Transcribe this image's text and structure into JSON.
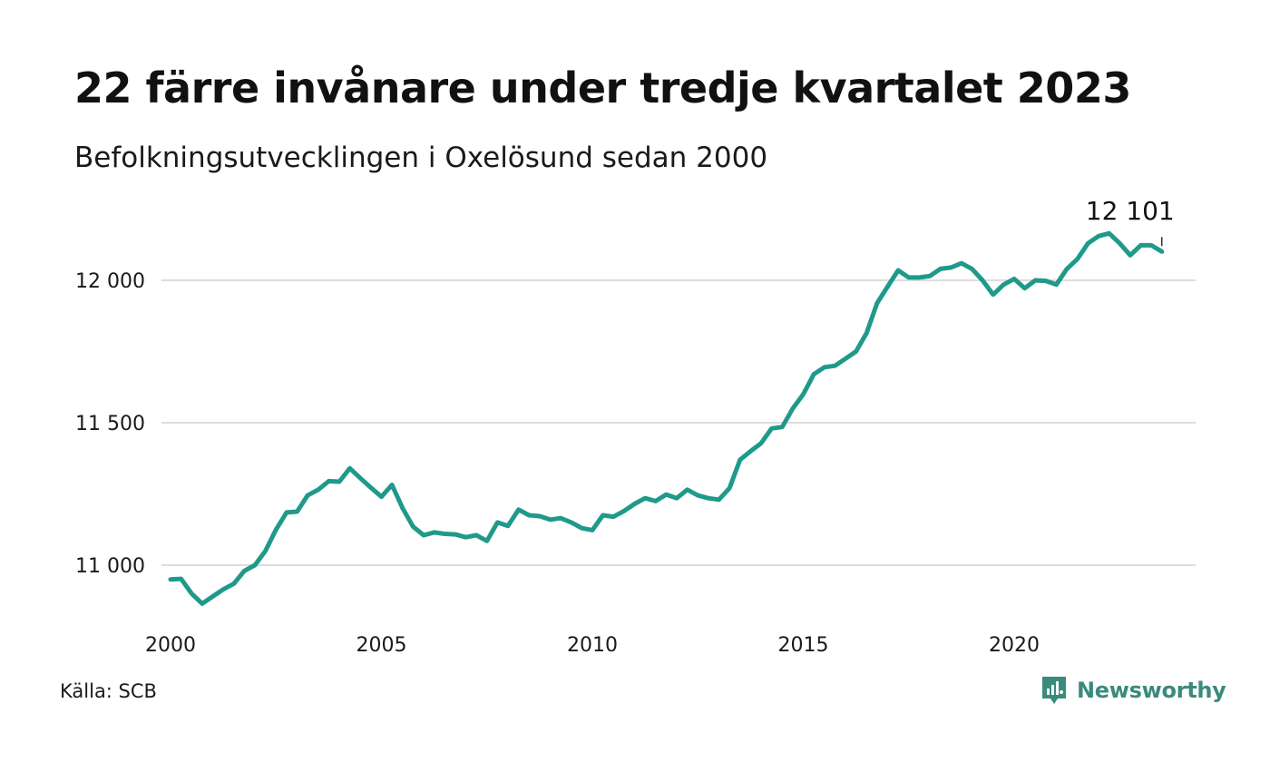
{
  "header": {
    "title": "22 färre invånare under tredje kvartalet 2023",
    "subtitle": "Befolkningsutvecklingen i Oxelösund sedan 2000"
  },
  "footer": {
    "source": "Källa: SCB",
    "brand": "Newsworthy",
    "brand_icon": "newsworthy-logo-icon"
  },
  "colors": {
    "line": "#1f9a8a",
    "grid": "#dddddd",
    "brand": "#3a8a7d"
  },
  "chart_data": {
    "type": "line",
    "title": "22 färre invånare under tredje kvartalet 2023",
    "subtitle": "Befolkningsutvecklingen i Oxelösund sedan 2000",
    "xlabel": "",
    "ylabel": "",
    "ylim": [
      10800,
      12200
    ],
    "y_ticks": [
      11000,
      11500,
      12000
    ],
    "y_tick_labels": [
      "11 000",
      "11 500",
      "12 000"
    ],
    "x_ticks": [
      2000,
      2005,
      2010,
      2015,
      2020
    ],
    "x_tick_labels": [
      "2000",
      "2005",
      "2010",
      "2015",
      "2020"
    ],
    "grid": true,
    "legend": "none",
    "annotation": {
      "label": "12 101",
      "value": 12101
    },
    "series": [
      {
        "x": [
          2000.0,
          2000.25,
          2000.5,
          2000.75,
          2001.0,
          2001.25,
          2001.5,
          2001.75,
          2002.0,
          2002.25,
          2002.5,
          2002.75,
          2003.0,
          2003.25,
          2003.5,
          2003.75,
          2004.0,
          2004.25,
          2004.5,
          2004.75,
          2005.0,
          2005.25,
          2005.5,
          2005.75,
          2006.0,
          2006.25,
          2006.5,
          2006.75,
          2007.0,
          2007.25,
          2007.5,
          2007.75,
          2008.0,
          2008.25,
          2008.5,
          2008.75,
          2009.0,
          2009.25,
          2009.5,
          2009.75,
          2010.0,
          2010.25,
          2010.5,
          2010.75,
          2011.0,
          2011.25,
          2011.5,
          2011.75,
          2012.0,
          2012.25,
          2012.5,
          2012.75,
          2013.0,
          2013.25,
          2013.5,
          2013.75,
          2014.0,
          2014.25,
          2014.5,
          2014.75,
          2015.0,
          2015.25,
          2015.5,
          2015.75,
          2016.0,
          2016.25,
          2016.5,
          2016.75,
          2017.0,
          2017.25,
          2017.5,
          2017.75,
          2018.0,
          2018.25,
          2018.5,
          2018.75,
          2019.0,
          2019.25,
          2019.5,
          2019.75,
          2020.0,
          2020.25,
          2020.5,
          2020.75,
          2021.0,
          2021.25,
          2021.5,
          2021.75,
          2022.0,
          2022.25,
          2022.5,
          2022.75,
          2023.0,
          2023.25,
          2023.5
        ],
        "values": [
          10950,
          10952,
          10900,
          10865,
          10890,
          10915,
          10935,
          10980,
          11000,
          11050,
          11125,
          11185,
          11188,
          11245,
          11265,
          11295,
          11293,
          11340,
          11305,
          11272,
          11240,
          11282,
          11200,
          11135,
          11105,
          11115,
          11110,
          11108,
          11098,
          11105,
          11085,
          11150,
          11138,
          11195,
          11175,
          11172,
          11160,
          11165,
          11150,
          11130,
          11123,
          11175,
          11170,
          11190,
          11215,
          11235,
          11225,
          11248,
          11235,
          11265,
          11245,
          11235,
          11230,
          11270,
          11370,
          11400,
          11428,
          11480,
          11485,
          11550,
          11600,
          11670,
          11695,
          11700,
          11725,
          11750,
          11815,
          11920,
          11978,
          12035,
          12010,
          12010,
          12015,
          12040,
          12045,
          12060,
          12040,
          12000,
          11950,
          11985,
          12005,
          11972,
          12000,
          11998,
          11985,
          12040,
          12075,
          12130,
          12155,
          12165,
          12130,
          12088,
          12123,
          12123,
          12101
        ]
      }
    ]
  }
}
